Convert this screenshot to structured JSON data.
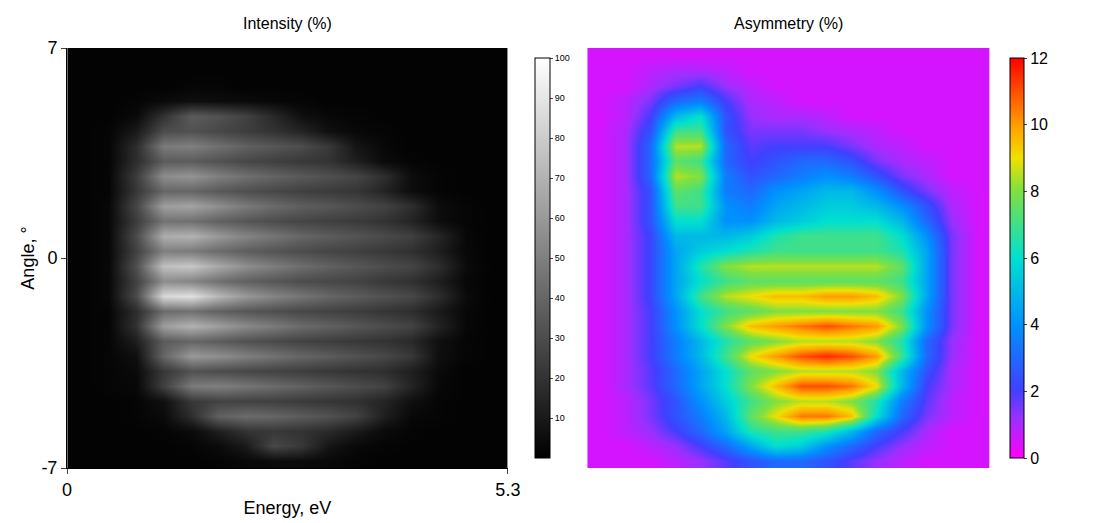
{
  "chart_data": [
    {
      "type": "heatmap",
      "title": "Intensity (%)",
      "xlabel": "Energy, eV",
      "ylabel": "Angle, °",
      "x": [
        0.17,
        0.5,
        0.83,
        1.16,
        1.49,
        1.82,
        2.15,
        2.48,
        2.82,
        3.15,
        3.48,
        3.81,
        4.14,
        4.47,
        4.8,
        5.13
      ],
      "y": [
        -6.75,
        -6.25,
        -5.75,
        -5.25,
        -4.75,
        -4.25,
        -3.75,
        -3.25,
        -2.75,
        -2.25,
        -1.75,
        -1.25,
        -0.75,
        -0.25,
        0.25,
        0.75,
        1.25,
        1.75,
        2.25,
        2.75,
        3.25,
        3.75,
        4.25,
        4.75,
        5.25,
        5.75,
        6.25,
        6.75
      ],
      "z": [
        [
          1,
          1,
          1,
          1,
          1,
          2,
          3,
          4,
          4,
          3,
          2,
          1,
          1,
          1,
          1,
          1
        ],
        [
          1,
          1,
          1,
          1,
          2,
          4,
          10,
          28,
          22,
          8,
          3,
          2,
          1,
          1,
          1,
          1
        ],
        [
          1,
          1,
          1,
          2,
          4,
          12,
          20,
          22,
          20,
          16,
          10,
          4,
          2,
          1,
          1,
          1
        ],
        [
          1,
          1,
          2,
          4,
          18,
          38,
          42,
          40,
          36,
          32,
          26,
          12,
          3,
          2,
          1,
          1
        ],
        [
          1,
          1,
          2,
          6,
          22,
          26,
          26,
          25,
          23,
          21,
          19,
          14,
          6,
          2,
          1,
          1
        ],
        [
          1,
          2,
          3,
          25,
          48,
          50,
          46,
          42,
          38,
          34,
          30,
          26,
          14,
          3,
          1,
          1
        ],
        [
          1,
          2,
          4,
          22,
          32,
          30,
          28,
          26,
          24,
          22,
          20,
          18,
          12,
          4,
          1,
          1
        ],
        [
          1,
          2,
          6,
          40,
          60,
          56,
          50,
          45,
          40,
          36,
          32,
          28,
          22,
          6,
          2,
          1
        ],
        [
          1,
          2,
          12,
          36,
          40,
          36,
          32,
          29,
          26,
          24,
          22,
          20,
          16,
          6,
          2,
          1
        ],
        [
          1,
          2,
          20,
          62,
          70,
          62,
          54,
          48,
          42,
          38,
          34,
          30,
          26,
          14,
          3,
          1
        ],
        [
          1,
          2,
          18,
          42,
          44,
          38,
          34,
          31,
          28,
          26,
          24,
          21,
          18,
          10,
          3,
          1
        ],
        [
          1,
          3,
          30,
          85,
          88,
          72,
          60,
          52,
          46,
          40,
          36,
          32,
          28,
          18,
          4,
          1
        ],
        [
          1,
          3,
          26,
          55,
          52,
          44,
          38,
          34,
          30,
          28,
          26,
          22,
          19,
          12,
          3,
          1
        ],
        [
          1,
          3,
          32,
          75,
          78,
          66,
          56,
          49,
          43,
          38,
          34,
          30,
          27,
          18,
          4,
          1
        ],
        [
          1,
          3,
          26,
          50,
          48,
          42,
          37,
          33,
          30,
          27,
          25,
          22,
          19,
          12,
          3,
          1
        ],
        [
          1,
          3,
          30,
          68,
          70,
          60,
          52,
          46,
          40,
          36,
          33,
          29,
          25,
          15,
          3,
          1
        ],
        [
          1,
          3,
          24,
          45,
          44,
          38,
          34,
          30,
          27,
          25,
          23,
          20,
          14,
          5,
          2,
          1
        ],
        [
          1,
          3,
          28,
          62,
          64,
          56,
          48,
          42,
          37,
          34,
          30,
          26,
          18,
          5,
          2,
          1
        ],
        [
          1,
          2,
          22,
          40,
          40,
          35,
          31,
          28,
          25,
          23,
          21,
          14,
          5,
          2,
          1,
          1
        ],
        [
          1,
          2,
          24,
          55,
          58,
          50,
          44,
          39,
          35,
          31,
          27,
          18,
          5,
          2,
          1,
          1
        ],
        [
          1,
          2,
          18,
          36,
          36,
          32,
          28,
          25,
          22,
          20,
          12,
          4,
          2,
          1,
          1,
          1
        ],
        [
          1,
          2,
          18,
          48,
          50,
          44,
          38,
          34,
          30,
          22,
          8,
          3,
          1,
          1,
          1,
          1
        ],
        [
          1,
          2,
          10,
          30,
          32,
          28,
          24,
          20,
          14,
          6,
          3,
          2,
          1,
          1,
          1,
          1
        ],
        [
          1,
          1,
          4,
          20,
          36,
          32,
          26,
          16,
          6,
          3,
          2,
          1,
          1,
          1,
          1,
          1
        ],
        [
          1,
          1,
          2,
          4,
          6,
          5,
          4,
          3,
          2,
          1,
          1,
          1,
          1,
          1,
          1,
          1
        ],
        [
          1,
          1,
          1,
          1,
          2,
          2,
          1,
          1,
          1,
          1,
          1,
          1,
          1,
          1,
          1,
          1
        ],
        [
          1,
          1,
          1,
          1,
          1,
          1,
          1,
          1,
          1,
          1,
          1,
          1,
          1,
          1,
          1,
          1
        ],
        [
          1,
          1,
          1,
          1,
          1,
          1,
          1,
          1,
          1,
          1,
          1,
          1,
          1,
          1,
          1,
          1
        ]
      ],
      "xlim": [
        0,
        5.3
      ],
      "ylim": [
        -7,
        7
      ],
      "xticks": [
        0,
        5.3
      ],
      "yticks": [
        -7,
        0,
        7
      ],
      "color": "gray",
      "colorbar_range": [
        0,
        100
      ],
      "colorbar_ticks": [
        10,
        20,
        30,
        40,
        50,
        60,
        70,
        80,
        90,
        100
      ]
    },
    {
      "type": "heatmap",
      "title": "Asymmetry (%)",
      "x": [
        0.17,
        0.5,
        0.83,
        1.16,
        1.49,
        1.82,
        2.15,
        2.48,
        2.82,
        3.15,
        3.48,
        3.81,
        4.14,
        4.47,
        4.8,
        5.13
      ],
      "y": [
        -6.75,
        -6.25,
        -5.75,
        -5.25,
        -4.75,
        -4.25,
        -3.75,
        -3.25,
        -2.75,
        -2.25,
        -1.75,
        -1.25,
        -0.75,
        -0.25,
        0.25,
        0.75,
        1.25,
        1.75,
        2.25,
        2.75,
        3.25,
        3.75,
        4.25,
        4.75,
        5.25,
        5.75,
        6.25,
        6.75
      ],
      "z": [
        [
          0.5,
          0.5,
          0.5,
          0.8,
          1.2,
          1.8,
          2.5,
          3,
          3,
          2.5,
          1.8,
          1.2,
          0.8,
          0.5,
          0.5,
          0.5
        ],
        [
          0.5,
          0.5,
          0.8,
          1.2,
          2,
          3,
          4.5,
          6,
          5.5,
          4,
          3,
          2,
          1.2,
          0.8,
          0.5,
          0.5
        ],
        [
          0.5,
          0.8,
          1.2,
          2,
          3,
          4.5,
          6.5,
          7,
          7,
          6.5,
          5,
          3,
          2,
          1,
          0.5,
          0.5
        ],
        [
          0.5,
          0.8,
          1.5,
          2.5,
          3.5,
          5,
          7.5,
          9,
          10.5,
          10.5,
          9.5,
          6,
          3,
          1.5,
          0.8,
          0.5
        ],
        [
          0.5,
          0.8,
          1.5,
          2.5,
          4,
          5.5,
          7,
          8,
          8.5,
          8.5,
          8,
          6.5,
          3.5,
          1.8,
          0.8,
          0.5
        ],
        [
          0.5,
          1,
          1.8,
          3,
          4.5,
          6,
          8,
          9.5,
          11,
          11,
          10.5,
          9,
          5,
          2,
          1,
          0.5
        ],
        [
          0.5,
          1,
          1.8,
          3,
          4.5,
          6,
          7.5,
          8,
          8.5,
          8.5,
          8.5,
          8,
          5,
          2.5,
          1,
          0.5
        ],
        [
          0.5,
          1,
          2,
          3.5,
          5,
          7,
          9,
          10,
          11,
          11.5,
          11,
          10,
          7,
          3,
          1.2,
          0.5
        ],
        [
          0.5,
          1,
          2,
          3.5,
          5,
          6.5,
          7.5,
          8,
          8.5,
          8.5,
          8.5,
          8,
          6.5,
          3,
          1.2,
          0.5
        ],
        [
          0.5,
          1,
          2,
          4,
          6,
          8,
          9.5,
          10,
          10.5,
          11,
          10.5,
          10,
          8,
          4,
          1.5,
          0.5
        ],
        [
          0.5,
          1,
          2,
          4,
          6,
          7,
          7.5,
          8,
          8,
          8,
          8,
          8,
          7,
          4,
          1.5,
          0.5
        ],
        [
          0.5,
          1,
          2.2,
          4.5,
          7,
          8.5,
          9,
          9.5,
          9.5,
          10,
          10,
          9.5,
          8,
          4.5,
          1.5,
          0.5
        ],
        [
          0.5,
          1,
          2.2,
          4.5,
          6,
          7,
          7.5,
          7.5,
          7.5,
          7.5,
          7.5,
          7.5,
          7,
          4.5,
          1.5,
          0.5
        ],
        [
          0.5,
          1,
          2.2,
          4.5,
          6.5,
          8,
          8.5,
          8.5,
          8.5,
          8.5,
          8.5,
          8.5,
          7.5,
          4.5,
          1.5,
          0.5
        ],
        [
          0.5,
          1,
          2.2,
          4.5,
          5.5,
          6,
          6.5,
          7,
          7,
          7,
          7,
          7,
          6.5,
          4.5,
          1.5,
          0.5
        ],
        [
          0.5,
          1,
          2.2,
          5,
          5,
          5,
          5.5,
          6.5,
          7,
          7,
          7,
          7,
          6,
          4,
          1.5,
          0.5
        ],
        [
          0.5,
          1,
          2.5,
          6,
          6,
          4,
          4,
          5,
          5.5,
          6,
          6,
          6,
          5,
          3,
          1.2,
          0.5
        ],
        [
          0.5,
          1,
          2.5,
          7,
          7,
          4,
          3.5,
          4.5,
          5,
          5.5,
          5.5,
          5,
          4,
          2.5,
          1,
          0.5
        ],
        [
          0.5,
          1,
          2.5,
          7.5,
          7,
          3.5,
          3,
          4,
          4.5,
          5,
          5,
          4,
          2.5,
          1.5,
          0.8,
          0.5
        ],
        [
          0.5,
          1,
          3,
          8.5,
          8,
          3.5,
          2.5,
          3,
          3.5,
          4,
          3.5,
          2.5,
          1.5,
          1,
          0.5,
          0.5
        ],
        [
          0.5,
          1,
          3,
          7.5,
          7,
          3,
          2,
          2.5,
          3,
          3,
          2.5,
          1.5,
          1,
          0.8,
          0.5,
          0.5
        ],
        [
          0.5,
          1,
          3,
          8.5,
          8.5,
          3,
          1.8,
          2,
          2,
          2,
          1.5,
          1,
          0.8,
          0.5,
          0.5,
          0.5
        ],
        [
          0.5,
          1,
          2.5,
          7,
          7,
          2.5,
          1.5,
          1.5,
          1.5,
          1.2,
          1,
          0.8,
          0.5,
          0.5,
          0.5,
          0.5
        ],
        [
          0.5,
          0.8,
          2,
          5,
          6,
          2.5,
          1.2,
          1,
          1,
          0.8,
          0.5,
          0.5,
          0.5,
          0.5,
          0.5,
          0.5
        ],
        [
          0.5,
          0.8,
          1.5,
          3,
          3.5,
          2,
          1,
          0.8,
          0.5,
          0.5,
          0.5,
          0.5,
          0.5,
          0.5,
          0.5,
          0.5
        ],
        [
          0.5,
          0.5,
          1,
          1.5,
          2,
          1.2,
          0.8,
          0.5,
          0.5,
          0.5,
          0.5,
          0.5,
          0.5,
          0.5,
          0.5,
          0.5
        ],
        [
          0.5,
          0.5,
          0.8,
          1,
          1,
          0.8,
          0.5,
          0.5,
          0.5,
          0.5,
          0.5,
          0.5,
          0.5,
          0.5,
          0.5,
          0.5
        ],
        [
          0.5,
          0.5,
          0.5,
          0.5,
          0.5,
          0.5,
          0.5,
          0.5,
          0.5,
          0.5,
          0.5,
          0.5,
          0.5,
          0.5,
          0.5,
          0.5
        ]
      ],
      "xlim": [
        0,
        5.3
      ],
      "ylim": [
        -7,
        7
      ],
      "tick_labels": false,
      "color": "rainbow",
      "colorbar_range": [
        0,
        12
      ],
      "colorbar_ticks": [
        0,
        2,
        4,
        6,
        8,
        10,
        12
      ]
    }
  ]
}
